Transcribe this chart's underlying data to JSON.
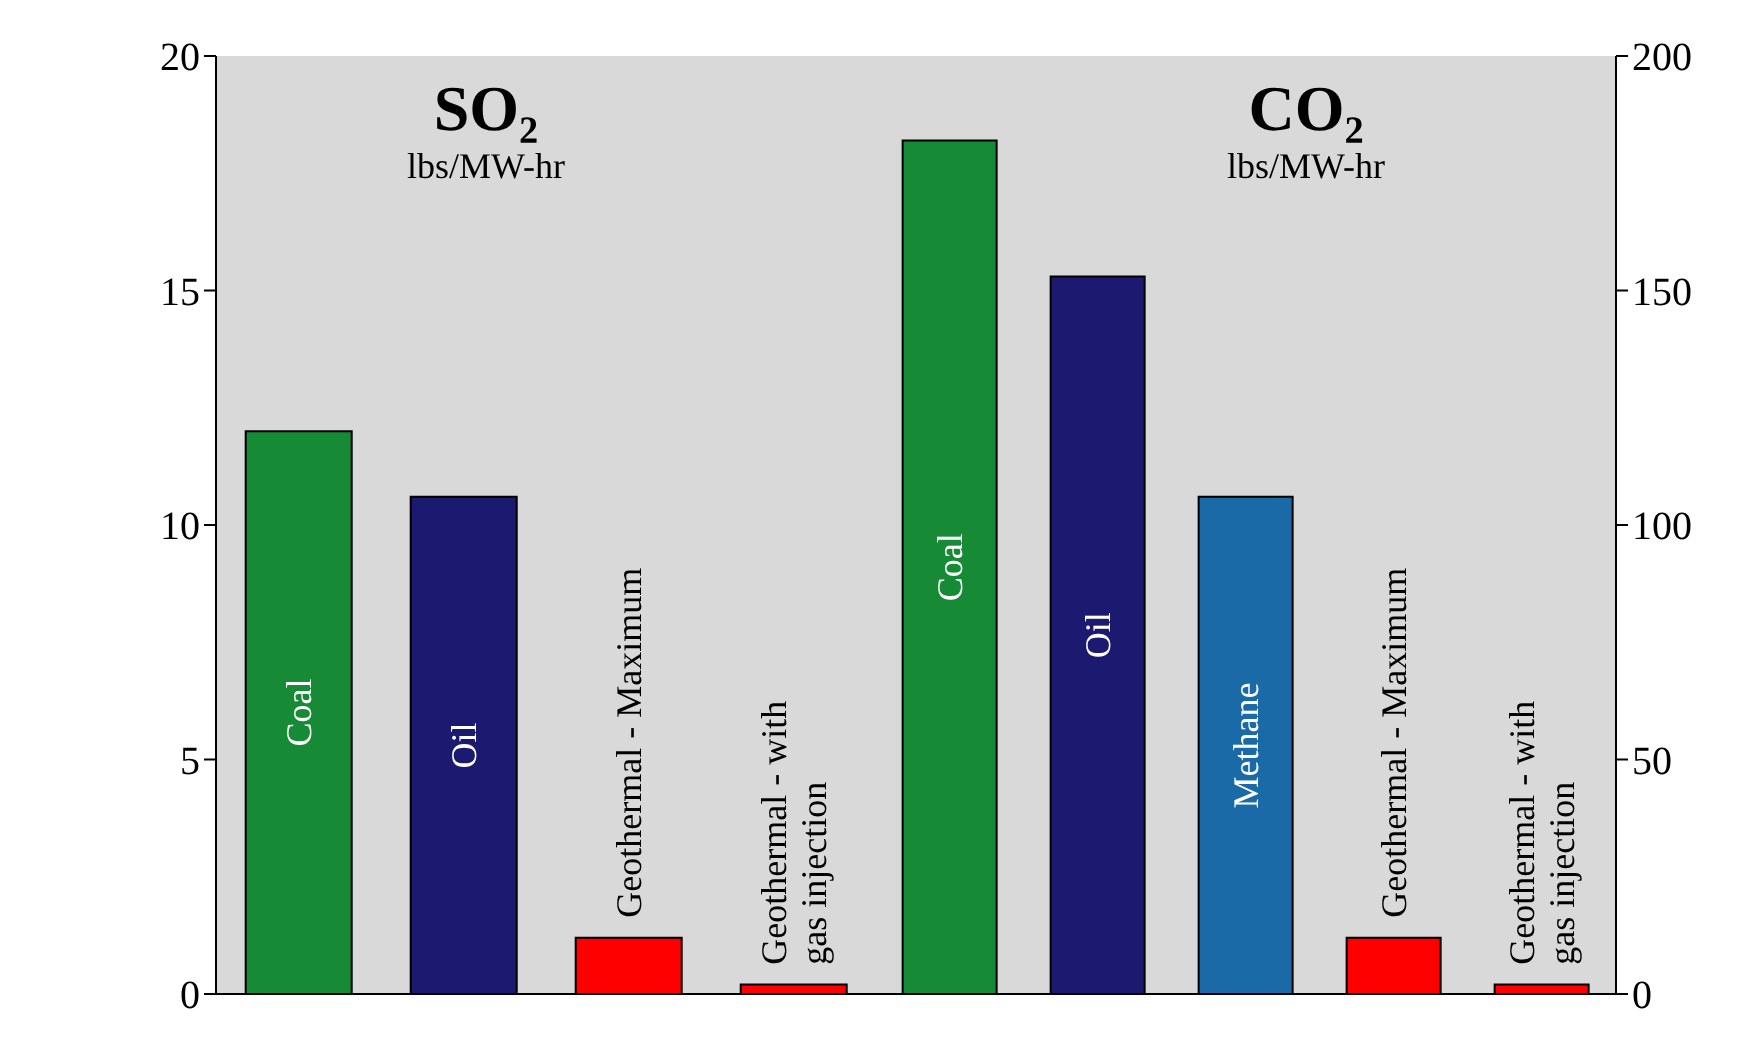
{
  "chart_data": [
    {
      "type": "bar",
      "title": "SO₂",
      "subtitle": "lbs/MW-hr",
      "categories": [
        "Coal",
        "Oil",
        "Geothermal - Maximum",
        "Geothermal - with gas injection"
      ],
      "values": [
        12,
        10.6,
        1.2,
        0.2
      ],
      "colors": [
        "#168a35",
        "#1c1a70",
        "#ff0000",
        "#ff0000"
      ],
      "ylim": [
        0,
        20
      ],
      "yticks": [
        0,
        5,
        10,
        15,
        20
      ],
      "grid": false
    },
    {
      "type": "bar",
      "title": "CO₂",
      "subtitle": "lbs/MW-hr",
      "categories": [
        "Coal",
        "Oil",
        "Methane",
        "Geothermal - Maximum",
        "Geothermal - with gas injection"
      ],
      "series": [
        {
          "axis": "y2",
          "values": [
            182,
            153,
            106,
            12,
            2
          ]
        }
      ],
      "colors": [
        "#168a35",
        "#1c1a70",
        "#1a6aa8",
        "#ff0000",
        "#ff0000"
      ],
      "y2lim": [
        0,
        200
      ],
      "y2ticks": [
        0,
        50,
        100,
        150,
        200
      ],
      "grid": false
    }
  ]
}
